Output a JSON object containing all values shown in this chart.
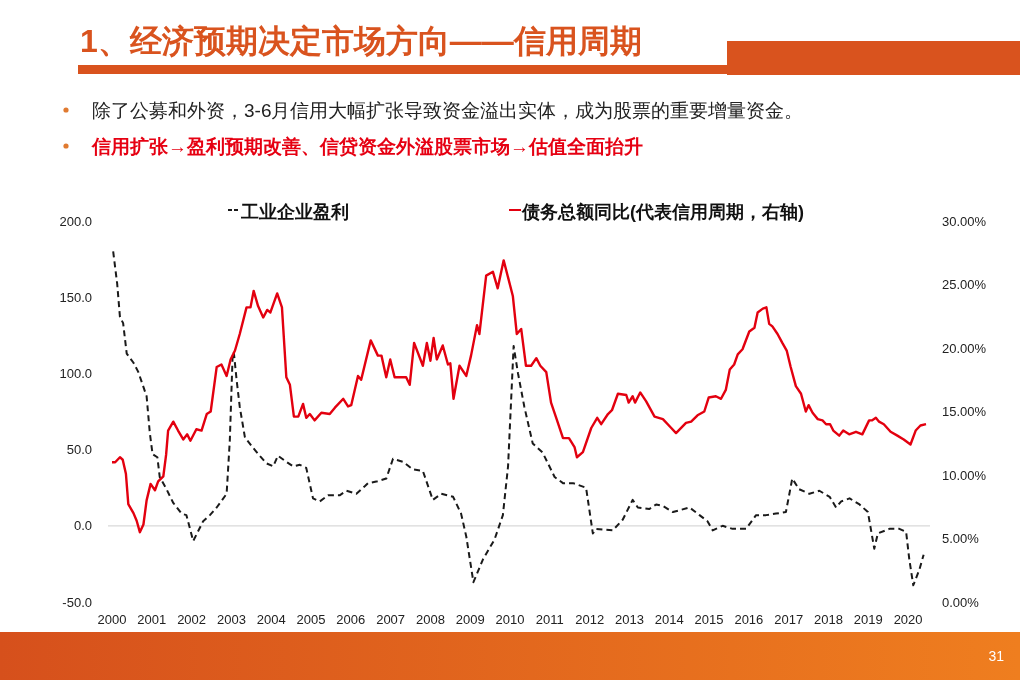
{
  "chart_data": {
    "type": "line",
    "title": "1、经济预期决定市场方向——信用周期",
    "subtitle": "除了公募和外资，3-6月信用大幅扩张导致资金溢出实体，成为股票的重要增量资金。",
    "annotations": [
      "信用扩张→盈利预期改善、信贷资金外溢股票市场→估值全面抬升",
      "31"
    ],
    "xlim": [
      1999.9,
      2020.55
    ],
    "xticks": [
      2000,
      2001,
      2002,
      2003,
      2004,
      2005,
      2006,
      2007,
      2008,
      2009,
      2010,
      2011,
      2012,
      2013,
      2014,
      2015,
      2016,
      2017,
      2018,
      2019,
      2020
    ],
    "ylim": [
      -50,
      200
    ],
    "yticks": [
      {
        "value": -50,
        "label": "-50.0"
      },
      {
        "value": 0,
        "label": "0.0"
      },
      {
        "value": 50,
        "label": "50.0"
      },
      {
        "value": 100,
        "label": "100.0"
      },
      {
        "value": 150,
        "label": "150.0"
      },
      {
        "value": 200,
        "label": "200.0"
      }
    ],
    "y2lim": [
      0,
      30
    ],
    "y2ticks": [
      {
        "value": 0,
        "label": "0.00%"
      },
      {
        "value": 5,
        "label": "5.00%"
      },
      {
        "value": 10,
        "label": "10.00%"
      },
      {
        "value": 15,
        "label": "15.00%"
      },
      {
        "value": 20,
        "label": "20.00%"
      },
      {
        "value": 25,
        "label": "25.00%"
      },
      {
        "value": 30,
        "label": "30.00%"
      }
    ],
    "ref_lines": [
      {
        "axis": "y",
        "value": 0,
        "color": "#d9d9d9"
      }
    ],
    "legend": "top",
    "series": [
      {
        "name": "工业企业盈利",
        "color": "#1a1a1a",
        "line_style": "dashed",
        "x": [
          2000.03,
          2000.13,
          2000.2,
          2000.28,
          2000.37,
          2000.54,
          2000.66,
          2000.87,
          2000.95,
          2001.02,
          2001.14,
          2001.2,
          2001.37,
          2001.54,
          2001.75,
          2001.87,
          2002.04,
          2002.29,
          2002.46,
          2002.63,
          2002.88,
          2002.96,
          2003.03,
          2003.06,
          2003.13,
          2003.21,
          2003.34,
          2003.55,
          2003.71,
          2003.88,
          2004.05,
          2004.17,
          2004.38,
          2004.55,
          2004.72,
          2004.88,
          2005.05,
          2005.22,
          2005.43,
          2005.72,
          2005.89,
          2006.14,
          2006.35,
          2006.43,
          2006.64,
          2006.89,
          2007.06,
          2007.31,
          2007.56,
          2007.81,
          2008.06,
          2008.27,
          2008.57,
          2008.77,
          2008.9,
          2009.08,
          2009.32,
          2009.61,
          2009.82,
          2009.95,
          2010.09,
          2010.2,
          2010.36,
          2010.57,
          2010.82,
          2011.12,
          2011.33,
          2011.58,
          2011.91,
          2012.08,
          2012.16,
          2012.58,
          2012.83,
          2013.08,
          2013.21,
          2013.5,
          2013.67,
          2013.84,
          2014.09,
          2014.51,
          2014.76,
          2014.96,
          2015.09,
          2015.34,
          2015.59,
          2015.93,
          2016.18,
          2016.43,
          2016.68,
          2016.93,
          2017.09,
          2017.26,
          2017.52,
          2017.77,
          2018.03,
          2018.19,
          2018.32,
          2018.53,
          2018.78,
          2018.99,
          2019.15,
          2019.24,
          2019.53,
          2019.78,
          2019.95,
          2020.03,
          2020.13,
          2020.28,
          2020.39
        ],
        "values": [
          180,
          159,
          137,
          133,
          113,
          107,
          101,
          85,
          61,
          47,
          45,
          32,
          24,
          15,
          8,
          7,
          -10,
          3,
          7,
          12,
          21,
          56,
          111,
          114,
          96,
          78,
          58,
          51,
          46,
          41,
          39,
          46,
          42,
          39,
          40,
          38,
          18,
          16,
          20,
          20,
          23,
          21,
          26,
          28,
          29,
          31,
          44,
          42,
          37,
          36,
          17,
          21,
          19,
          8,
          -7,
          -37,
          -22,
          -9,
          7,
          39,
          118,
          100,
          78,
          54,
          48,
          32,
          28,
          28,
          25,
          -5,
          -2,
          -3,
          4,
          17,
          12,
          11,
          14,
          13,
          9,
          12,
          7,
          3,
          -3,
          0,
          -2,
          -2,
          7,
          7,
          8,
          9,
          31,
          24,
          21,
          23,
          19,
          12,
          16,
          18,
          14,
          9,
          -15,
          -5,
          -2,
          -2,
          -4,
          -22,
          -39,
          -29,
          -19
        ]
      },
      {
        "name": "债务总额同比(代表信用周期，右轴)",
        "color": "#e3000f",
        "axis": "y2",
        "x": [
          2000.0,
          2000.08,
          2000.2,
          2000.27,
          2000.35,
          2000.41,
          2000.54,
          2000.62,
          2000.7,
          2000.79,
          2000.87,
          2000.97,
          2001.08,
          2001.16,
          2001.29,
          2001.36,
          2001.41,
          2001.54,
          2001.66,
          2001.79,
          2001.89,
          2001.97,
          2002.12,
          2002.25,
          2002.38,
          2002.48,
          2002.63,
          2002.75,
          2002.88,
          2002.98,
          2003.09,
          2003.21,
          2003.38,
          2003.48,
          2003.56,
          2003.67,
          2003.8,
          2003.9,
          2003.98,
          2004.15,
          2004.27,
          2004.38,
          2004.47,
          2004.57,
          2004.68,
          2004.8,
          2004.88,
          2004.97,
          2005.09,
          2005.26,
          2005.47,
          2005.6,
          2005.81,
          2005.93,
          2006.01,
          2006.18,
          2006.26,
          2006.5,
          2006.68,
          2006.77,
          2006.89,
          2006.99,
          2007.1,
          2007.39,
          2007.48,
          2007.59,
          2007.81,
          2007.91,
          2008.0,
          2008.08,
          2008.16,
          2008.31,
          2008.44,
          2008.5,
          2008.58,
          2008.73,
          2008.9,
          2009.02,
          2009.17,
          2009.23,
          2009.4,
          2009.57,
          2009.69,
          2009.84,
          2010.07,
          2010.17,
          2010.28,
          2010.4,
          2010.53,
          2010.66,
          2010.76,
          2010.91,
          2011.03,
          2011.16,
          2011.33,
          2011.48,
          2011.62,
          2011.68,
          2011.83,
          2012.04,
          2012.19,
          2012.29,
          2012.46,
          2012.56,
          2012.71,
          2012.92,
          2012.98,
          2013.08,
          2013.14,
          2013.27,
          2013.42,
          2013.63,
          2013.84,
          2014.05,
          2014.17,
          2014.42,
          2014.55,
          2014.71,
          2014.88,
          2014.99,
          2015.17,
          2015.3,
          2015.42,
          2015.52,
          2015.63,
          2015.72,
          2015.84,
          2016.01,
          2016.14,
          2016.22,
          2016.35,
          2016.44,
          2016.51,
          2016.59,
          2016.72,
          2016.84,
          2016.95,
          2017.05,
          2017.18,
          2017.31,
          2017.43,
          2017.5,
          2017.6,
          2017.73,
          2017.85,
          2017.94,
          2018.04,
          2018.12,
          2018.27,
          2018.37,
          2018.52,
          2018.69,
          2018.85,
          2019.02,
          2019.09,
          2019.19,
          2019.27,
          2019.39,
          2019.56,
          2019.73,
          2019.89,
          2020.06,
          2020.19,
          2020.31,
          2020.45
        ],
        "values": [
          11.0,
          11.0,
          11.4,
          11.2,
          10.1,
          7.7,
          7.0,
          6.4,
          5.5,
          6.1,
          8.0,
          9.3,
          8.8,
          9.5,
          9.9,
          11.6,
          13.5,
          14.2,
          13.5,
          12.8,
          13.2,
          12.7,
          13.6,
          13.5,
          14.8,
          15.0,
          18.5,
          18.7,
          17.8,
          19.1,
          19.8,
          21.1,
          23.2,
          23.2,
          24.5,
          23.3,
          22.4,
          23.0,
          22.8,
          24.3,
          23.2,
          17.7,
          17.1,
          14.6,
          14.6,
          15.6,
          14.5,
          14.8,
          14.3,
          14.9,
          14.8,
          15.3,
          16.0,
          15.4,
          15.5,
          17.8,
          17.5,
          20.6,
          19.4,
          19.4,
          17.7,
          19.1,
          17.7,
          17.7,
          17.1,
          20.4,
          18.6,
          20.4,
          19.0,
          20.8,
          19.1,
          20.2,
          18.7,
          18.8,
          16.0,
          18.6,
          17.8,
          19.4,
          21.8,
          21.1,
          25.7,
          26.0,
          24.7,
          26.9,
          24.1,
          21.1,
          21.5,
          18.6,
          18.6,
          19.2,
          18.6,
          18.1,
          15.7,
          14.5,
          12.9,
          12.9,
          12.2,
          11.4,
          11.8,
          13.7,
          14.5,
          14.0,
          14.8,
          15.1,
          16.4,
          16.3,
          15.7,
          16.2,
          15.7,
          16.5,
          15.8,
          14.6,
          14.4,
          13.7,
          13.3,
          14.1,
          14.2,
          14.7,
          15.0,
          16.1,
          16.2,
          16.0,
          16.7,
          18.3,
          18.7,
          19.5,
          19.9,
          21.3,
          21.6,
          22.8,
          23.1,
          23.2,
          21.9,
          21.7,
          21.1,
          20.4,
          19.8,
          18.5,
          17.0,
          16.4,
          15.0,
          15.5,
          14.9,
          14.4,
          14.3,
          14.0,
          14.0,
          13.5,
          13.1,
          13.5,
          13.2,
          13.4,
          13.2,
          14.3,
          14.3,
          14.5,
          14.2,
          14.0,
          13.4,
          13.1,
          12.8,
          12.4,
          13.5,
          13.9,
          14.0
        ]
      }
    ]
  }
}
